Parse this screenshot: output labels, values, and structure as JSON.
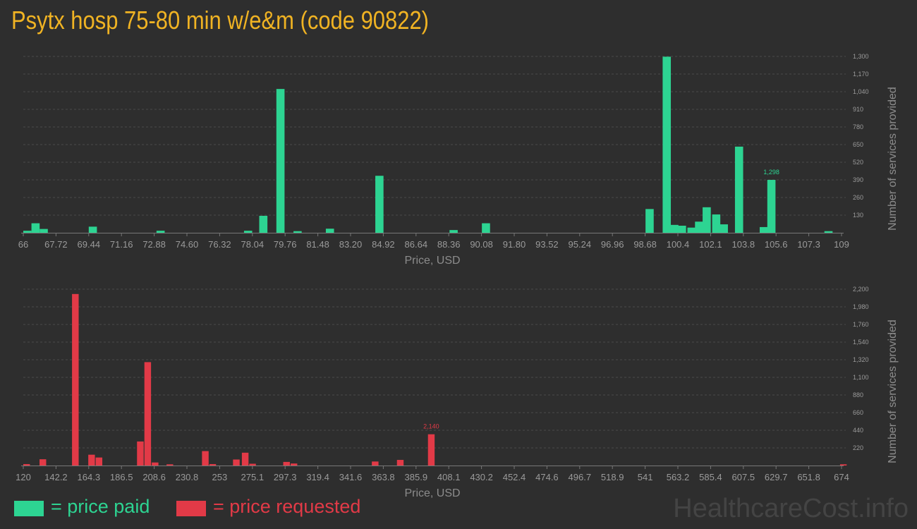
{
  "title": "Psytx hosp 75-80 min w/e&m (code 90822)",
  "colors": {
    "title": "#f0b323",
    "paid": "#2dd492",
    "requested": "#e23a47",
    "text": "#9a9a9a"
  },
  "legend": {
    "paid_label": "= price paid",
    "requested_label": "= price requested"
  },
  "watermark": "HealthcareCost.info",
  "chart_data": [
    {
      "type": "bar",
      "series_key": "paid",
      "xlabel": "Price, USD",
      "ylabel": "Number of services provided",
      "xlim": [
        66,
        109
      ],
      "ylim": [
        0,
        1300
      ],
      "x_ticks": [
        "66",
        "67.72",
        "69.44",
        "71.16",
        "72.88",
        "74.60",
        "76.32",
        "78.04",
        "79.76",
        "81.48",
        "83.20",
        "84.92",
        "86.64",
        "88.36",
        "90.08",
        "91.80",
        "93.52",
        "95.24",
        "96.96",
        "98.68",
        "100.4",
        "102.1",
        "103.8",
        "105.6",
        "107.3",
        "109"
      ],
      "y_ticks": [
        "130",
        "260",
        "390",
        "520",
        "650",
        "780",
        "910",
        "1,040",
        "1,170",
        "1,300"
      ],
      "bin_width": 0.43,
      "peak_label": "1,298",
      "bars": [
        {
          "x": 66.0,
          "y": 15
        },
        {
          "x": 66.43,
          "y": 70
        },
        {
          "x": 66.86,
          "y": 28
        },
        {
          "x": 69.44,
          "y": 45
        },
        {
          "x": 73.0,
          "y": 15
        },
        {
          "x": 77.6,
          "y": 15
        },
        {
          "x": 78.4,
          "y": 125
        },
        {
          "x": 79.3,
          "y": 1060
        },
        {
          "x": 80.2,
          "y": 12
        },
        {
          "x": 81.9,
          "y": 30
        },
        {
          "x": 84.5,
          "y": 420
        },
        {
          "x": 88.4,
          "y": 20
        },
        {
          "x": 90.1,
          "y": 70
        },
        {
          "x": 98.7,
          "y": 175
        },
        {
          "x": 99.6,
          "y": 1298
        },
        {
          "x": 100.0,
          "y": 58
        },
        {
          "x": 100.4,
          "y": 52
        },
        {
          "x": 100.9,
          "y": 38
        },
        {
          "x": 101.3,
          "y": 82
        },
        {
          "x": 101.7,
          "y": 188
        },
        {
          "x": 102.2,
          "y": 135
        },
        {
          "x": 102.6,
          "y": 62
        },
        {
          "x": 103.4,
          "y": 635
        },
        {
          "x": 104.7,
          "y": 42
        },
        {
          "x": 105.1,
          "y": 390
        },
        {
          "x": 108.1,
          "y": 12
        }
      ]
    },
    {
      "type": "bar",
      "series_key": "requested",
      "xlabel": "Price, USD",
      "ylabel": "Number of services provided",
      "xlim": [
        120,
        674
      ],
      "ylim": [
        0,
        2200
      ],
      "x_ticks": [
        "120",
        "142.2",
        "164.3",
        "186.5",
        "208.6",
        "230.8",
        "253",
        "275.1",
        "297.3",
        "319.4",
        "341.6",
        "363.8",
        "385.9",
        "408.1",
        "430.2",
        "452.4",
        "474.6",
        "496.7",
        "518.9",
        "541",
        "563.2",
        "585.4",
        "607.5",
        "629.7",
        "651.8",
        "674"
      ],
      "y_ticks": [
        "220",
        "440",
        "660",
        "880",
        "1,100",
        "1,320",
        "1,540",
        "1,760",
        "1,980",
        "2,200"
      ],
      "bin_width": 4.5,
      "peak_label": "2,140",
      "bars": [
        {
          "x": 120.0,
          "y": 18
        },
        {
          "x": 131.0,
          "y": 78
        },
        {
          "x": 153.0,
          "y": 2140
        },
        {
          "x": 164.0,
          "y": 135
        },
        {
          "x": 169.0,
          "y": 100
        },
        {
          "x": 197.0,
          "y": 300
        },
        {
          "x": 202.0,
          "y": 1290
        },
        {
          "x": 207.0,
          "y": 38
        },
        {
          "x": 217.0,
          "y": 15
        },
        {
          "x": 241.0,
          "y": 180
        },
        {
          "x": 246.0,
          "y": 18
        },
        {
          "x": 262.0,
          "y": 75
        },
        {
          "x": 268.0,
          "y": 160
        },
        {
          "x": 273.0,
          "y": 22
        },
        {
          "x": 296.0,
          "y": 45
        },
        {
          "x": 301.0,
          "y": 25
        },
        {
          "x": 356.0,
          "y": 50
        },
        {
          "x": 373.0,
          "y": 70
        },
        {
          "x": 394.0,
          "y": 390
        },
        {
          "x": 673.0,
          "y": 15
        }
      ]
    }
  ]
}
